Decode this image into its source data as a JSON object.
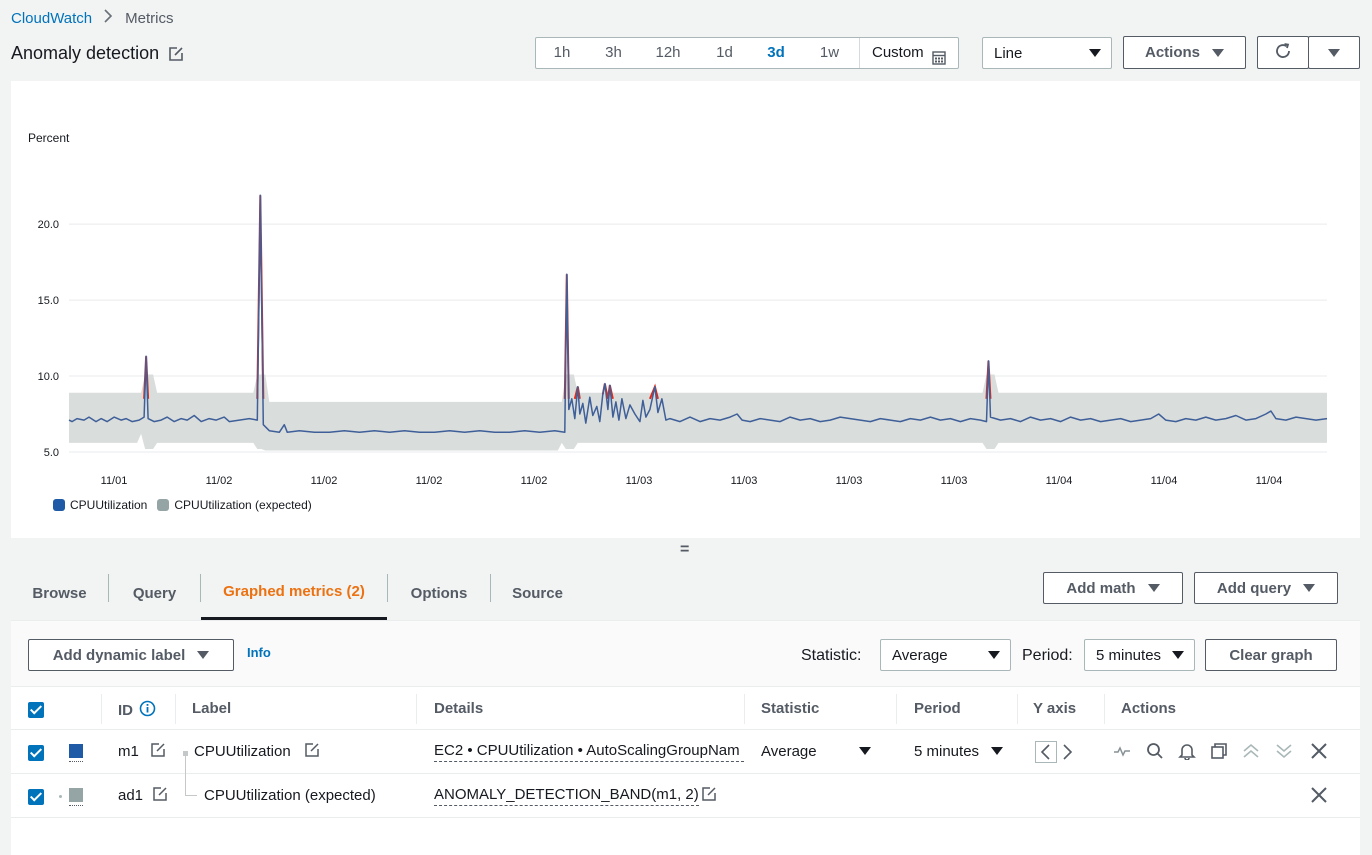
{
  "breadcrumb": {
    "root": "CloudWatch",
    "current": "Metrics"
  },
  "header": {
    "title": "Anomaly detection"
  },
  "time_range": {
    "options": [
      "1h",
      "3h",
      "12h",
      "1d",
      "3d",
      "1w"
    ],
    "active": "3d",
    "custom_label": "Custom"
  },
  "graph_type": {
    "selected": "Line"
  },
  "buttons": {
    "actions": "Actions",
    "add_math": "Add math",
    "add_query": "Add query",
    "add_dynamic_label": "Add dynamic label",
    "clear_graph": "Clear graph",
    "info": "Info"
  },
  "chart_data": {
    "type": "line",
    "ylabel": "Percent",
    "y_ticks": [
      "5.0",
      "10.0",
      "15.0",
      "20.0"
    ],
    "ylim": [
      5,
      23.5
    ],
    "x_tick_labels": [
      "11/01",
      "11/02",
      "11/02",
      "11/02",
      "11/02",
      "11/03",
      "11/03",
      "11/03",
      "11/03",
      "11/04",
      "11/04",
      "11/04"
    ],
    "legend": [
      "CPUUtilization",
      "CPUUtilization (expected)"
    ],
    "legend_placement": "bottom-left",
    "colors": {
      "series": "#3f5f99",
      "band": "#d9dddc",
      "anomaly": "#e02a1b"
    },
    "series": [
      {
        "name": "CPUUtilization",
        "points": [
          [
            0,
            7.1
          ],
          [
            3,
            7.0
          ],
          [
            8,
            7.2
          ],
          [
            15,
            7.1
          ],
          [
            20,
            7.3
          ],
          [
            27,
            7.0
          ],
          [
            32,
            7.2
          ],
          [
            38,
            7.0
          ],
          [
            45,
            7.3
          ],
          [
            52,
            7.1
          ],
          [
            57,
            7.2
          ],
          [
            63,
            7.0
          ],
          [
            70,
            7.1
          ],
          [
            75,
            7.3
          ],
          [
            77,
            11.3
          ],
          [
            79,
            7.2
          ],
          [
            85,
            7.0
          ],
          [
            92,
            7.1
          ],
          [
            98,
            7.3
          ],
          [
            105,
            7.0
          ],
          [
            112,
            7.2
          ],
          [
            118,
            7.1
          ],
          [
            125,
            7.4
          ],
          [
            132,
            7.0
          ],
          [
            140,
            7.2
          ],
          [
            147,
            7.1
          ],
          [
            155,
            7.3
          ],
          [
            160,
            7.0
          ],
          [
            170,
            7.1
          ],
          [
            180,
            7.2
          ],
          [
            188,
            7.1
          ],
          [
            191,
            21.9
          ],
          [
            194,
            6.8
          ],
          [
            200,
            6.4
          ],
          [
            210,
            6.3
          ],
          [
            215,
            6.8
          ],
          [
            218,
            6.3
          ],
          [
            230,
            6.4
          ],
          [
            245,
            6.3
          ],
          [
            260,
            6.3
          ],
          [
            275,
            6.4
          ],
          [
            290,
            6.3
          ],
          [
            305,
            6.4
          ],
          [
            320,
            6.3
          ],
          [
            335,
            6.4
          ],
          [
            350,
            6.3
          ],
          [
            365,
            6.3
          ],
          [
            380,
            6.4
          ],
          [
            395,
            6.3
          ],
          [
            410,
            6.4
          ],
          [
            425,
            6.3
          ],
          [
            440,
            6.3
          ],
          [
            455,
            6.4
          ],
          [
            470,
            6.3
          ],
          [
            485,
            6.4
          ],
          [
            495,
            6.3
          ],
          [
            497,
            16.7
          ],
          [
            499,
            7.8
          ],
          [
            502,
            8.5
          ],
          [
            505,
            7.2
          ],
          [
            508,
            9.3
          ],
          [
            510,
            7.5
          ],
          [
            513,
            8.2
          ],
          [
            516,
            6.9
          ],
          [
            520,
            8.6
          ],
          [
            523,
            7.4
          ],
          [
            527,
            8.0
          ],
          [
            530,
            7.0
          ],
          [
            533,
            8.8
          ],
          [
            535,
            9.5
          ],
          [
            538,
            7.8
          ],
          [
            540,
            9.4
          ],
          [
            543,
            7.3
          ],
          [
            546,
            8.3
          ],
          [
            549,
            7.1
          ],
          [
            552,
            8.5
          ],
          [
            556,
            7.2
          ],
          [
            560,
            8.1
          ],
          [
            565,
            7.5
          ],
          [
            570,
            7.0
          ],
          [
            573,
            8.4
          ],
          [
            576,
            7.3
          ],
          [
            580,
            7.8
          ],
          [
            585,
            9.3
          ],
          [
            588,
            7.6
          ],
          [
            592,
            8.5
          ],
          [
            596,
            7.1
          ],
          [
            600,
            7.2
          ],
          [
            610,
            7.0
          ],
          [
            620,
            7.3
          ],
          [
            630,
            7.0
          ],
          [
            640,
            7.2
          ],
          [
            650,
            7.1
          ],
          [
            660,
            7.3
          ],
          [
            667,
            7.5
          ],
          [
            672,
            7.1
          ],
          [
            680,
            7.0
          ],
          [
            690,
            7.2
          ],
          [
            700,
            7.1
          ],
          [
            710,
            7.0
          ],
          [
            720,
            7.3
          ],
          [
            730,
            7.1
          ],
          [
            740,
            7.2
          ],
          [
            750,
            7.0
          ],
          [
            760,
            7.1
          ],
          [
            770,
            7.3
          ],
          [
            780,
            7.2
          ],
          [
            790,
            7.1
          ],
          [
            800,
            7.0
          ],
          [
            810,
            7.2
          ],
          [
            820,
            7.1
          ],
          [
            830,
            7.0
          ],
          [
            840,
            7.2
          ],
          [
            850,
            7.1
          ],
          [
            860,
            7.3
          ],
          [
            870,
            7.1
          ],
          [
            880,
            7.2
          ],
          [
            890,
            7.0
          ],
          [
            900,
            7.2
          ],
          [
            910,
            7.1
          ],
          [
            916,
            7.0
          ],
          [
            918,
            11.0
          ],
          [
            920,
            7.3
          ],
          [
            930,
            7.1
          ],
          [
            940,
            7.2
          ],
          [
            950,
            7.0
          ],
          [
            960,
            7.3
          ],
          [
            970,
            7.1
          ],
          [
            980,
            7.2
          ],
          [
            990,
            7.0
          ],
          [
            1000,
            7.3
          ],
          [
            1010,
            7.1
          ],
          [
            1020,
            7.2
          ],
          [
            1030,
            7.0
          ],
          [
            1040,
            7.1
          ],
          [
            1050,
            7.2
          ],
          [
            1060,
            7.0
          ],
          [
            1070,
            7.1
          ],
          [
            1080,
            7.2
          ],
          [
            1088,
            7.5
          ],
          [
            1095,
            7.1
          ],
          [
            1105,
            7.0
          ],
          [
            1115,
            7.2
          ],
          [
            1125,
            7.1
          ],
          [
            1135,
            7.3
          ],
          [
            1145,
            7.1
          ],
          [
            1155,
            7.2
          ],
          [
            1165,
            7.4
          ],
          [
            1175,
            7.1
          ],
          [
            1185,
            7.2
          ],
          [
            1195,
            7.5
          ],
          [
            1200,
            7.7
          ],
          [
            1205,
            7.2
          ],
          [
            1215,
            7.1
          ],
          [
            1225,
            7.3
          ],
          [
            1235,
            7.2
          ],
          [
            1245,
            7.1
          ],
          [
            1256,
            7.2
          ]
        ]
      },
      {
        "name": "CPUUtilization (expected)",
        "band": true
      }
    ]
  },
  "tabs": [
    "Browse",
    "Query",
    "Graphed metrics (2)",
    "Options",
    "Source"
  ],
  "active_tab": "Graphed metrics (2)",
  "controls": {
    "statistic_label": "Statistic:",
    "statistic_value": "Average",
    "period_label": "Period:",
    "period_value": "5 minutes"
  },
  "table": {
    "headers": {
      "id": "ID",
      "label": "Label",
      "details": "Details",
      "statistic": "Statistic",
      "period": "Period",
      "yaxis": "Y axis",
      "actions": "Actions"
    },
    "rows": [
      {
        "id": "m1",
        "label": "CPUUtilization",
        "details": "EC2 • CPUUtilization • AutoScalingGroupNam",
        "statistic": "Average",
        "period": "5 minutes",
        "color": "#1f5aa6"
      },
      {
        "id": "ad1",
        "label": "CPUUtilization (expected)",
        "details": "ANOMALY_DETECTION_BAND(m1, 2)",
        "color": "#95a5a6"
      }
    ]
  }
}
